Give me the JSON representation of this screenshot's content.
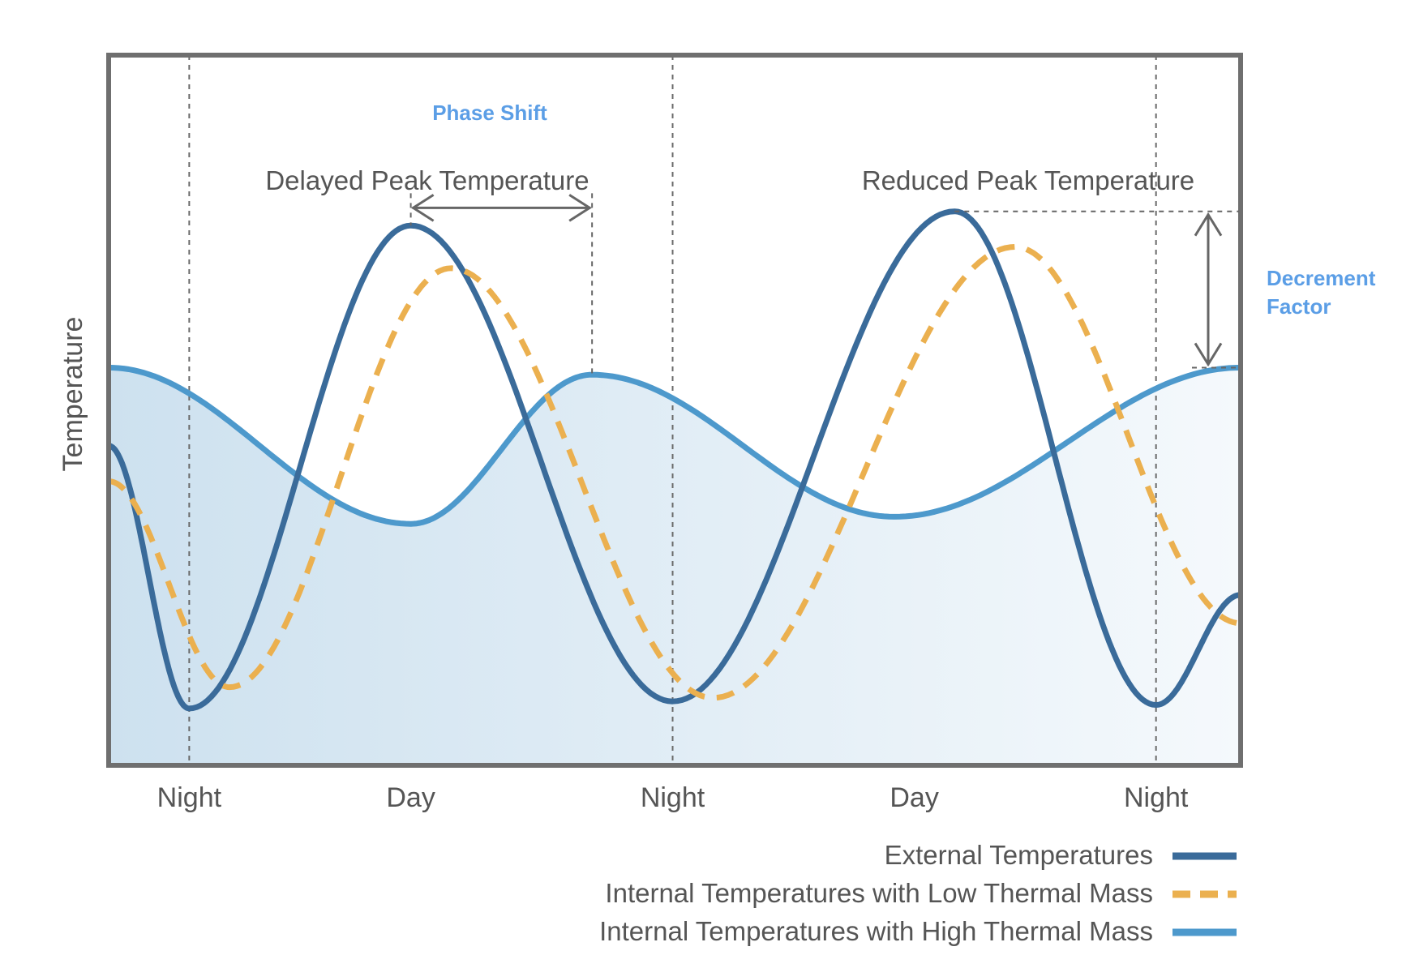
{
  "chart_data": {
    "type": "line",
    "title": "",
    "xlabel": "",
    "ylabel": "Temperature",
    "xlim": [
      -1,
      13.05
    ],
    "ylim": [
      0,
      100
    ],
    "x_ticks": [
      {
        "x": 0,
        "label": "Night"
      },
      {
        "x": 2.75,
        "label": "Day"
      },
      {
        "x": 6,
        "label": "Night"
      },
      {
        "x": 9,
        "label": "Day"
      },
      {
        "x": 12,
        "label": "Night"
      }
    ],
    "night_markers": [
      0,
      6,
      12
    ],
    "series": [
      {
        "name": "External Temperatures",
        "color": "#3a6b9a",
        "style": "solid",
        "x": [
          -1,
          0,
          2.75,
          6,
          9.5,
          12,
          13.05
        ],
        "values": [
          45,
          8,
          76,
          9,
          78,
          8.5,
          24
        ]
      },
      {
        "name": "Internal Temperatures with Low Thermal Mass",
        "color": "#ebb04f",
        "style": "dashed",
        "x": [
          -1,
          0.5,
          3.25,
          6.5,
          10.25,
          13.05
        ],
        "values": [
          40,
          11,
          70,
          9.5,
          73,
          20
        ]
      },
      {
        "name": "Internal Temperatures with High Thermal Mass",
        "color": "#4d99cc",
        "style": "solid",
        "x": [
          -1,
          2.75,
          5,
          8.75,
          13.05
        ],
        "values": [
          56,
          34,
          55,
          35,
          56
        ]
      }
    ],
    "annotations": {
      "phase_shift": "Phase Shift",
      "delayed_peak": "Delayed Peak Temperature",
      "reduced_peak": "Reduced Peak Temperature",
      "decrement_line1": "Decrement",
      "decrement_line2": "Factor"
    },
    "phase_shift_span": [
      2.75,
      5
    ],
    "decrement_span": [
      56,
      78
    ],
    "legend_position": "bottom-right"
  }
}
